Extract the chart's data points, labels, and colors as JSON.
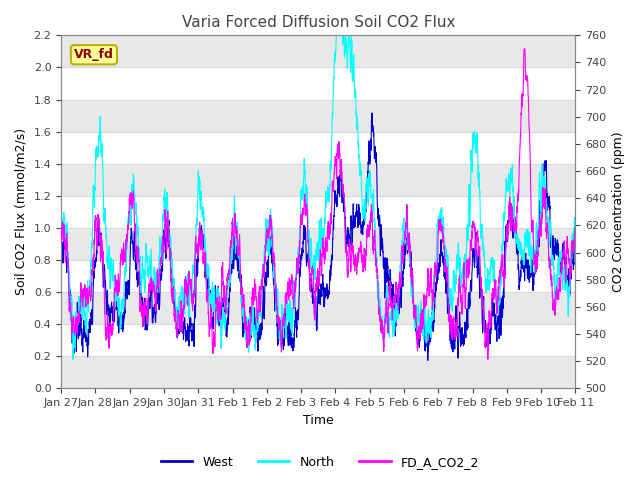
{
  "title": "Varia Forced Diffusion Soil CO2 Flux",
  "xlabel": "Time",
  "ylabel_left": "Soil CO2 Flux (mmol/m2/s)",
  "ylabel_right": "CO2 Concentration (ppm)",
  "ylim_left": [
    0.0,
    2.2
  ],
  "ylim_right": [
    500,
    760
  ],
  "yticks_left": [
    0.0,
    0.2,
    0.4,
    0.6,
    0.8,
    1.0,
    1.2,
    1.4,
    1.6,
    1.8,
    2.0,
    2.2
  ],
  "yticks_right": [
    500,
    520,
    540,
    560,
    580,
    600,
    620,
    640,
    660,
    680,
    700,
    720,
    740,
    760
  ],
  "xtick_labels": [
    "Jan 27",
    "Jan 28",
    "Jan 29",
    "Jan 30",
    "Jan 31",
    "Feb 1",
    "Feb 2",
    "Feb 3",
    "Feb 4",
    "Feb 5",
    "Feb 6",
    "Feb 7",
    "Feb 8",
    "Feb 9",
    "Feb 10",
    "Feb 11"
  ],
  "annotation_text": "VR_fd",
  "annotation_color": "#8B0000",
  "annotation_bg": "#FFFF99",
  "annotation_border": "#B8B000",
  "color_west": "#0000CD",
  "color_north": "#00FFFF",
  "color_co2": "#FF00FF",
  "legend_labels": [
    "West",
    "North",
    "FD_A_CO2_2"
  ],
  "bg_color": "#FFFFFF",
  "plot_bg": "#FFFFFF",
  "band_color": "#E8E8E8",
  "grid_color": "#D8D8D8",
  "linewidth": 0.8,
  "n_points": 4000,
  "seed": 42
}
